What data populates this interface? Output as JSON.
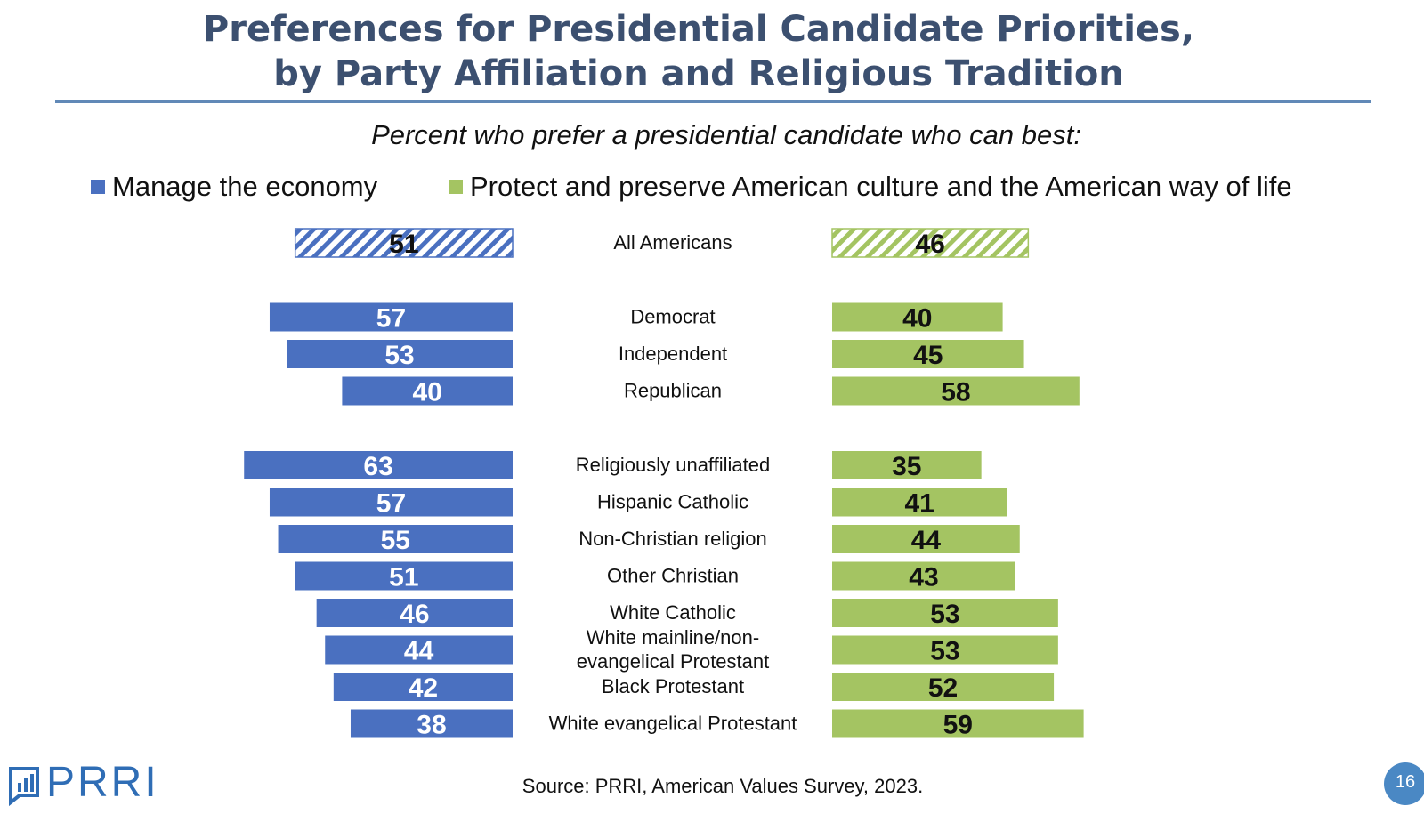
{
  "title_line1": "Preferences for Presidential Candidate Priorities,",
  "title_line2": "by Party Affiliation and Religious Tradition",
  "subtitle": "Percent who prefer a presidential candidate who can best:",
  "source": "Source: PRRI, American Values Survey, 2023.",
  "logo_text": "PRRI",
  "page_number": "16",
  "colors": {
    "blue": "#4a70c0",
    "green": "#a4c462",
    "title": "#3c5070",
    "rule": "#6189b7"
  },
  "chart_data": {
    "type": "bar",
    "title": "Percent who prefer a presidential candidate who can best:",
    "legend_placement": "top",
    "series": [
      {
        "name": "Manage the economy",
        "color": "#4a70c0",
        "values": [
          51,
          57,
          53,
          40,
          63,
          57,
          55,
          51,
          46,
          44,
          42,
          38
        ]
      },
      {
        "name": "Protect and preserve American culture and the American way of life",
        "color": "#a4c462",
        "values": [
          46,
          40,
          45,
          58,
          35,
          41,
          44,
          43,
          53,
          53,
          52,
          59
        ]
      }
    ],
    "categories": [
      "All Americans",
      "Democrat",
      "Independent",
      "Republican",
      "Religiously unaffiliated",
      "Hispanic Catholic",
      "Non-Christian religion",
      "Other Christian",
      "White Catholic",
      "White mainline/non-evangelical Protestant",
      "Black Protestant",
      "White evangelical Protestant"
    ],
    "category_lines": [
      [
        "All Americans"
      ],
      [
        "Democrat"
      ],
      [
        "Independent"
      ],
      [
        "Republican"
      ],
      [
        "Religiously unaffiliated"
      ],
      [
        "Hispanic Catholic"
      ],
      [
        "Non-Christian religion"
      ],
      [
        "Other Christian"
      ],
      [
        "White Catholic"
      ],
      [
        "White mainline/non-",
        "evangelical Protestant"
      ],
      [
        "Black Protestant"
      ],
      [
        "White evangelical Protestant"
      ]
    ],
    "groups": [
      [
        0
      ],
      [
        1,
        2,
        3
      ],
      [
        4,
        5,
        6,
        7,
        8,
        9,
        10,
        11
      ]
    ],
    "hatched_categories": [
      0
    ]
  }
}
